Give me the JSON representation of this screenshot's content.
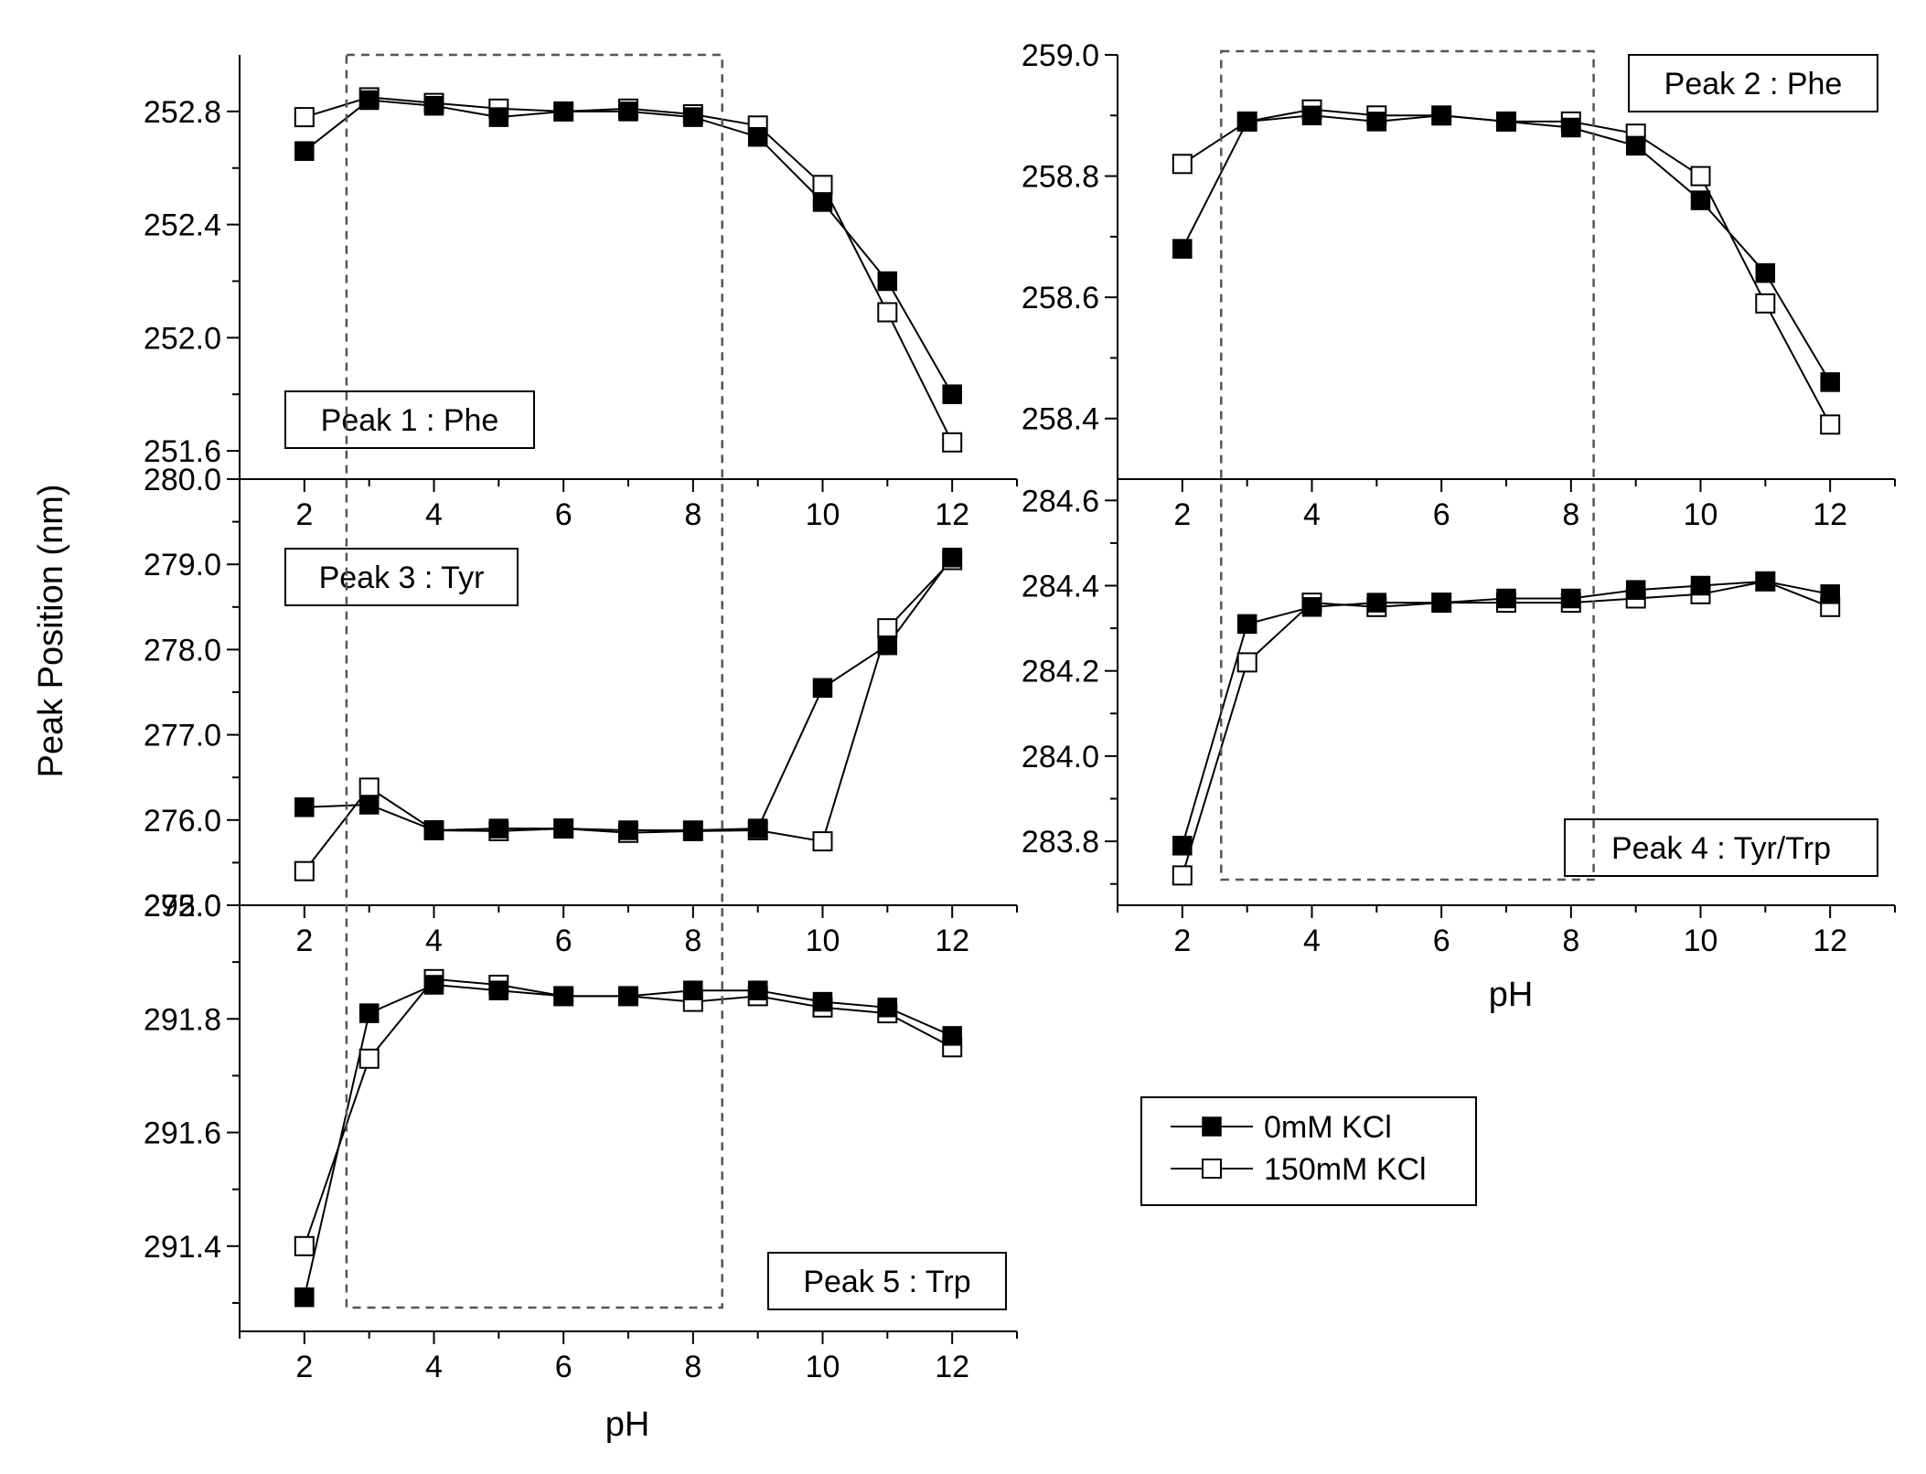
{
  "figure": {
    "ylabel": "Peak Position (nm)",
    "xlabel_left": "pH",
    "xlabel_right": "pH"
  },
  "legend": {
    "items": [
      {
        "label": "0mM KCl",
        "marker": "filled-square"
      },
      {
        "label": "150mM KCl",
        "marker": "open-square"
      }
    ]
  },
  "colors": {
    "series_0": "#000000",
    "series_1": "#000000",
    "series_1_fill": "#ffffff",
    "dashed_box": "#555555"
  },
  "chart_data": [
    {
      "type": "line",
      "panel": "Peak 1 : Phe",
      "label": "Peak 1 : Phe",
      "xlabel": "",
      "x": [
        2,
        3,
        4,
        5,
        6,
        7,
        8,
        9,
        10,
        11,
        12
      ],
      "xticks": [
        2,
        4,
        6,
        8,
        10,
        12
      ],
      "xlim": [
        1,
        13
      ],
      "ylim": [
        251.5,
        253.0
      ],
      "yticks": [
        251.6,
        252.0,
        252.4,
        252.8
      ],
      "ytick_labels": [
        "251.6",
        "252.0",
        "252.4",
        "252.8"
      ],
      "series": [
        {
          "name": "0mM KCl",
          "values": [
            252.66,
            252.84,
            252.82,
            252.78,
            252.8,
            252.8,
            252.78,
            252.71,
            252.48,
            252.2,
            251.8
          ]
        },
        {
          "name": "150mM KCl",
          "values": [
            252.78,
            252.85,
            252.83,
            252.81,
            252.8,
            252.81,
            252.79,
            252.75,
            252.54,
            252.09,
            251.63
          ]
        }
      ],
      "highlight_x": [
        2.65,
        8.45
      ]
    },
    {
      "type": "line",
      "panel": "Peak 2 : Phe",
      "label": "Peak 2 : Phe",
      "xlabel": "",
      "x": [
        2,
        3,
        4,
        5,
        6,
        7,
        8,
        9,
        10,
        11,
        12
      ],
      "xticks": [
        2,
        4,
        6,
        8,
        10,
        12
      ],
      "xlim": [
        1,
        13
      ],
      "ylim": [
        258.3,
        259.0
      ],
      "yticks": [
        258.4,
        258.6,
        258.8,
        259.0
      ],
      "ytick_labels": [
        "258.4",
        "258.6",
        "258.8",
        "259.0"
      ],
      "series": [
        {
          "name": "0mM KCl",
          "values": [
            258.68,
            258.89,
            258.9,
            258.89,
            258.9,
            258.89,
            258.88,
            258.85,
            258.76,
            258.64,
            258.46
          ]
        },
        {
          "name": "150mM KCl",
          "values": [
            258.82,
            258.89,
            258.91,
            258.9,
            258.9,
            258.89,
            258.89,
            258.87,
            258.8,
            258.59,
            258.39
          ]
        }
      ],
      "highlight_x": [
        2.6,
        8.35
      ]
    },
    {
      "type": "line",
      "panel": "Peak 3 : Tyr",
      "label": "Peak 3 : Tyr",
      "xlabel": "",
      "x": [
        2,
        3,
        4,
        5,
        6,
        7,
        8,
        9,
        10,
        11,
        12
      ],
      "xticks": [
        2,
        4,
        6,
        8,
        10,
        12
      ],
      "xlim": [
        1,
        13
      ],
      "ylim": [
        275.0,
        280.0
      ],
      "yticks": [
        275.0,
        276.0,
        277.0,
        278.0,
        279.0,
        280.0
      ],
      "ytick_labels": [
        "275.0",
        "276.0",
        "277.0",
        "278.0",
        "279.0",
        "280.0"
      ],
      "series": [
        {
          "name": "0mM KCl",
          "values": [
            276.15,
            276.18,
            275.88,
            275.9,
            275.9,
            275.88,
            275.88,
            275.9,
            277.55,
            278.05,
            279.08
          ]
        },
        {
          "name": "150mM KCl",
          "values": [
            275.4,
            276.38,
            275.88,
            275.87,
            275.9,
            275.85,
            275.87,
            275.88,
            275.75,
            278.25,
            279.05
          ]
        }
      ],
      "highlight_x": [
        2.65,
        8.45
      ]
    },
    {
      "type": "line",
      "panel": "Peak 4 : Tyr/Trp",
      "label": "Peak 4 : Tyr/Trp",
      "xlabel": "pH",
      "x": [
        2,
        3,
        4,
        5,
        6,
        7,
        8,
        9,
        10,
        11,
        12
      ],
      "xticks": [
        2,
        4,
        6,
        8,
        10,
        12
      ],
      "xlim": [
        1,
        13
      ],
      "ylim": [
        283.65,
        284.65
      ],
      "yticks": [
        283.8,
        284.0,
        284.2,
        284.4,
        284.6
      ],
      "ytick_labels": [
        "283.8",
        "284.0",
        "284.2",
        "284.4",
        "284.6"
      ],
      "series": [
        {
          "name": "0mM KCl",
          "values": [
            283.79,
            284.31,
            284.35,
            284.36,
            284.36,
            284.37,
            284.37,
            284.39,
            284.4,
            284.41,
            284.38
          ]
        },
        {
          "name": "150mM KCl",
          "values": [
            283.72,
            284.22,
            284.36,
            284.35,
            284.36,
            284.36,
            284.36,
            284.37,
            284.38,
            284.41,
            284.35
          ]
        }
      ],
      "highlight_x": [
        2.6,
        8.35
      ]
    },
    {
      "type": "line",
      "panel": "Peak 5 : Trp",
      "label": "Peak 5 : Trp",
      "xlabel": "pH",
      "x": [
        2,
        3,
        4,
        5,
        6,
        7,
        8,
        9,
        10,
        11,
        12
      ],
      "xticks": [
        2,
        4,
        6,
        8,
        10,
        12
      ],
      "xlim": [
        1,
        13
      ],
      "ylim": [
        291.25,
        292.0
      ],
      "yticks": [
        291.4,
        291.6,
        291.8,
        292.0
      ],
      "ytick_labels": [
        "291.4",
        "291.6",
        "291.8",
        "292.0"
      ],
      "series": [
        {
          "name": "0mM KCl",
          "values": [
            291.31,
            291.81,
            291.86,
            291.85,
            291.84,
            291.84,
            291.85,
            291.85,
            291.83,
            291.82,
            291.77
          ]
        },
        {
          "name": "150mM KCl",
          "values": [
            291.4,
            291.73,
            291.87,
            291.86,
            291.84,
            291.84,
            291.83,
            291.84,
            291.82,
            291.81,
            291.75
          ]
        }
      ],
      "highlight_x": [
        2.65,
        8.45
      ]
    }
  ]
}
